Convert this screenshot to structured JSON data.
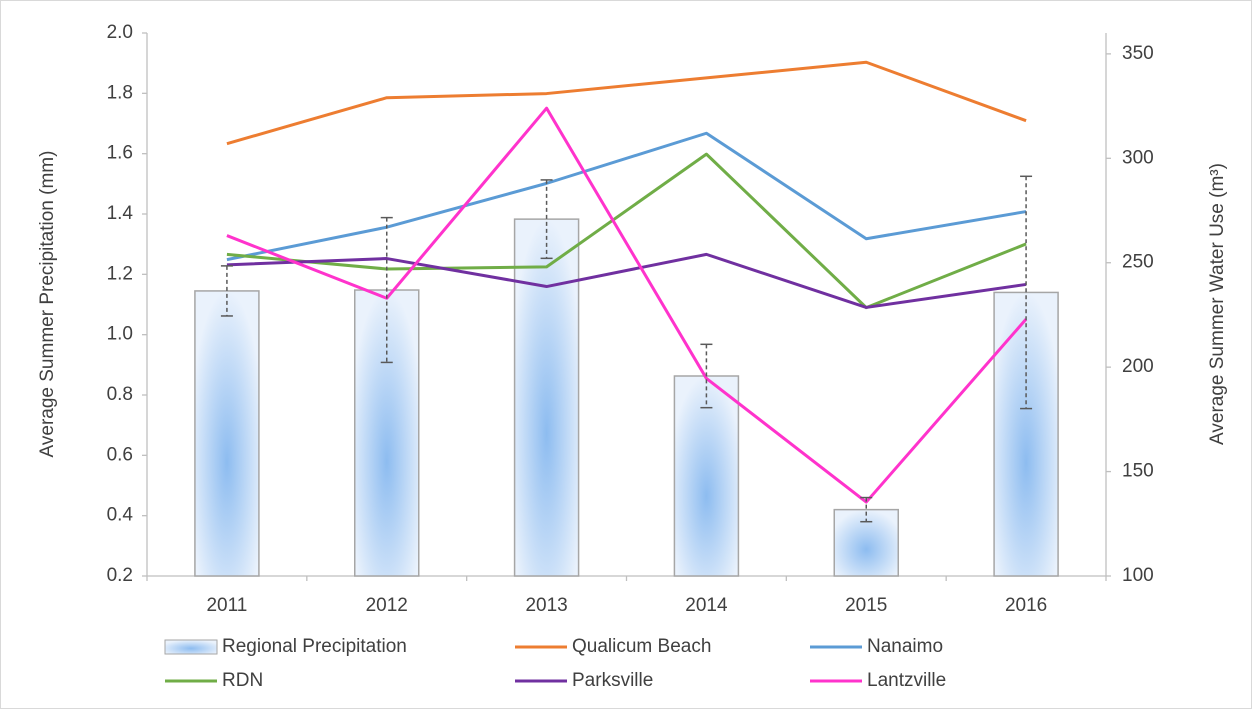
{
  "chart_data": {
    "type": "bar-line",
    "categories": [
      "2011",
      "2012",
      "2013",
      "2014",
      "2015",
      "2016"
    ],
    "y_label": "Average Summer Precipitation (mm)",
    "y2_label": "Average Summer Water Use (m³)",
    "ylim": [
      0.2,
      2.0
    ],
    "yticks": [
      0.2,
      0.4,
      0.6,
      0.8,
      {
        "value": 1.0,
        "label": "1.0"
      },
      1.2,
      1.4,
      1.6,
      1.8,
      {
        "value": 2.0,
        "label": "2.0"
      }
    ],
    "y2lim": [
      100,
      360
    ],
    "y2ticks": [
      100,
      150,
      200,
      250,
      300,
      350
    ],
    "legend": "bottom",
    "series": [
      {
        "name": "Regional Precipitation",
        "type": "bar",
        "color": "#9dc3f0",
        "values": [
          1.145,
          1.148,
          1.383,
          0.863,
          0.42,
          1.14
        ],
        "errors": [
          0.083,
          0.24,
          0.13,
          0.105,
          0.04,
          0.385
        ]
      },
      {
        "name": "Qualicum Beach",
        "type": "line",
        "axis": "y2",
        "color": "#ed7d31",
        "values": [
          307,
          329,
          331,
          338.5,
          346,
          318
        ]
      },
      {
        "name": "Nanaimo",
        "type": "line",
        "axis": "y2",
        "color": "#5b9bd5",
        "values": [
          251.5,
          267,
          288,
          312,
          261.5,
          274.5
        ]
      },
      {
        "name": "RDN",
        "type": "line",
        "axis": "y2",
        "color": "#70ad47",
        "values": [
          254,
          247,
          248,
          302,
          228.5,
          259
        ]
      },
      {
        "name": "Parksville",
        "type": "line",
        "axis": "y2",
        "color": "#7030a0",
        "values": [
          249,
          252,
          238.6,
          254,
          228.6,
          239.6
        ]
      },
      {
        "name": "Lantzville",
        "type": "line",
        "axis": "y2",
        "color": "#ff33cc",
        "values": [
          263,
          233,
          324,
          194.6,
          135.4,
          223
        ]
      }
    ]
  }
}
